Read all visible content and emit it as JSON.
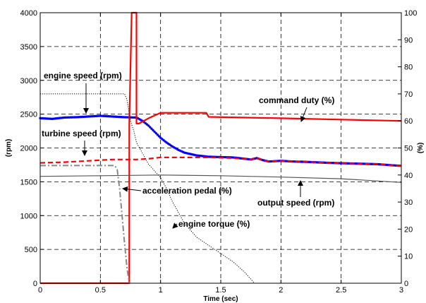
{
  "chart_data": {
    "type": "line",
    "xlabel": "Time (sec)",
    "ylabel_left": "(rpm)",
    "ylabel_right": "(%)",
    "xlim": [
      0,
      3
    ],
    "ylim_left": [
      0,
      4000
    ],
    "ylim_right": [
      0,
      100
    ],
    "x_ticks": [
      "0",
      "0.5",
      "1",
      "1.5",
      "2",
      "2.5",
      "3"
    ],
    "y_ticks_left": [
      "0",
      "500",
      "1000",
      "1500",
      "2000",
      "2500",
      "3000",
      "3500",
      "4000"
    ],
    "y_ticks_right": [
      "0",
      "10",
      "20",
      "30",
      "40",
      "50",
      "60",
      "70",
      "80",
      "90",
      "100"
    ],
    "grid": true,
    "series": [
      {
        "name": "engine speed (rpm)",
        "axis": "left",
        "color": "#0000ff",
        "style": "dots",
        "points": [
          [
            0,
            2440
          ],
          [
            0.1,
            2430
          ],
          [
            0.2,
            2450
          ],
          [
            0.3,
            2455
          ],
          [
            0.4,
            2465
          ],
          [
            0.5,
            2475
          ],
          [
            0.6,
            2465
          ],
          [
            0.7,
            2455
          ],
          [
            0.8,
            2450
          ],
          [
            0.85,
            2400
          ],
          [
            0.9,
            2330
          ],
          [
            0.95,
            2240
          ],
          [
            1.0,
            2150
          ],
          [
            1.05,
            2080
          ],
          [
            1.1,
            2020
          ],
          [
            1.15,
            1970
          ],
          [
            1.2,
            1930
          ],
          [
            1.3,
            1890
          ],
          [
            1.4,
            1870
          ],
          [
            1.5,
            1865
          ],
          [
            1.6,
            1860
          ],
          [
            1.7,
            1840
          ],
          [
            1.75,
            1830
          ],
          [
            1.8,
            1850
          ],
          [
            1.85,
            1820
          ],
          [
            1.9,
            1800
          ],
          [
            2.0,
            1810
          ],
          [
            2.1,
            1800
          ],
          [
            2.2,
            1795
          ],
          [
            2.4,
            1780
          ],
          [
            2.6,
            1770
          ],
          [
            2.8,
            1760
          ],
          [
            3.0,
            1735
          ]
        ]
      },
      {
        "name": "turbine speed (rpm)",
        "axis": "left",
        "color": "#ff0000",
        "style": "dashed",
        "points": [
          [
            0,
            1780
          ],
          [
            0.2,
            1790
          ],
          [
            0.4,
            1810
          ],
          [
            0.6,
            1830
          ],
          [
            0.8,
            1830
          ],
          [
            0.9,
            1840
          ],
          [
            1.0,
            1860
          ],
          [
            1.2,
            1860
          ],
          [
            1.4,
            1860
          ],
          [
            1.6,
            1850
          ],
          [
            1.7,
            1840
          ],
          [
            1.75,
            1830
          ],
          [
            1.8,
            1850
          ],
          [
            1.85,
            1820
          ],
          [
            1.9,
            1800
          ],
          [
            2.0,
            1810
          ],
          [
            2.2,
            1795
          ],
          [
            2.4,
            1780
          ],
          [
            2.6,
            1770
          ],
          [
            2.8,
            1760
          ],
          [
            3.0,
            1735
          ]
        ]
      },
      {
        "name": "command duty (%)",
        "axis": "right",
        "color": "#ff0000",
        "style": "solid",
        "points": [
          [
            0,
            0
          ],
          [
            0.72,
            0
          ],
          [
            0.74,
            0
          ],
          [
            0.74,
            59
          ],
          [
            0.76,
            100
          ],
          [
            0.8,
            100
          ],
          [
            0.8,
            59
          ],
          [
            0.82,
            59
          ],
          [
            0.9,
            61
          ],
          [
            1.0,
            63
          ],
          [
            1.38,
            63
          ],
          [
            1.4,
            61.5
          ],
          [
            2.0,
            61
          ],
          [
            2.5,
            60.5
          ],
          [
            3.0,
            60
          ]
        ]
      },
      {
        "name": "output speed (rpm)",
        "axis": "left",
        "color": "#555555",
        "style": "solid",
        "points": [
          [
            0,
            1580
          ],
          [
            0.5,
            1590
          ],
          [
            1.0,
            1600
          ],
          [
            1.5,
            1590
          ],
          [
            2.0,
            1570
          ],
          [
            2.5,
            1545
          ],
          [
            3.0,
            1490
          ]
        ]
      },
      {
        "name": "acceleration pedal (%)",
        "axis": "right",
        "color": "#888888",
        "style": "dashdot",
        "points": [
          [
            0,
            43.5
          ],
          [
            0.62,
            43.5
          ],
          [
            0.64,
            42
          ],
          [
            0.66,
            35
          ],
          [
            0.68,
            25
          ],
          [
            0.7,
            15
          ],
          [
            0.72,
            6
          ],
          [
            0.74,
            0
          ]
        ]
      },
      {
        "name": "engine torque (%)",
        "axis": "right",
        "color": "#000000",
        "style": "dotted",
        "points": [
          [
            0,
            70
          ],
          [
            0.7,
            70
          ],
          [
            0.72,
            68
          ],
          [
            0.75,
            60
          ],
          [
            0.78,
            56
          ],
          [
            0.8,
            52
          ],
          [
            0.85,
            48
          ],
          [
            0.9,
            44
          ],
          [
            1.0,
            39
          ],
          [
            1.05,
            35
          ],
          [
            1.1,
            30
          ],
          [
            1.15,
            26
          ],
          [
            1.2,
            22
          ],
          [
            1.3,
            17
          ],
          [
            1.4,
            14
          ],
          [
            1.5,
            11
          ],
          [
            1.6,
            8
          ],
          [
            1.7,
            4
          ],
          [
            1.78,
            0
          ]
        ]
      }
    ],
    "annotations": [
      {
        "text": "engine speed (rpm)",
        "series": 0
      },
      {
        "text": "command duty (%)",
        "series": 2
      },
      {
        "text": "turbine speed (rpm)",
        "series": 1
      },
      {
        "text": "acceleration pedal (%)",
        "series": 4
      },
      {
        "text": "output speed (rpm)",
        "series": 3
      },
      {
        "text": "engine torque (%)",
        "series": 5
      }
    ]
  }
}
